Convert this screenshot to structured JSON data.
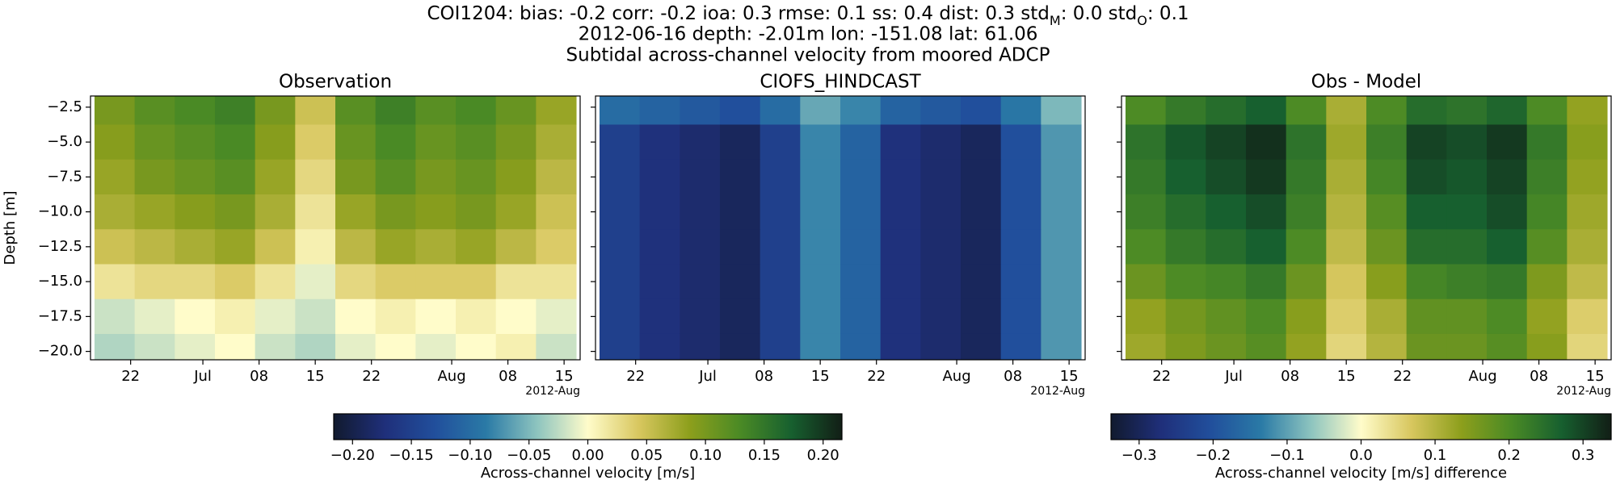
{
  "figure": {
    "title_parts": [
      {
        "text": "COI1204: bias: -0.2  corr: -0.2  ioa: 0.3  rmse: 0.1  ss: 0.4  dist: 0.3  std"
      },
      {
        "sub": "M"
      },
      {
        "text": ": 0.0  std"
      },
      {
        "sub": "O"
      },
      {
        "text": ": 0.1"
      }
    ],
    "subtitle": "2012-06-16 depth: -2.01m lon: -151.08 lat: 61.06",
    "subtitle2": "Subtidal across-channel velocity from moored ADCP",
    "colormap": [
      "#111a2e",
      "#1f2f7a",
      "#214f9c",
      "#2a7aa6",
      "#8dc4bf",
      "#fffcca",
      "#d8c75f",
      "#8d9f1c",
      "#4a8a25",
      "#17602f",
      "#121e16"
    ]
  },
  "chart_data": [
    {
      "type": "heatmap",
      "title": "Observation",
      "ylabel": "Depth [m]",
      "x_offset_label": "2012-Aug",
      "x": [
        "2012-06-20",
        "2012-06-25",
        "2012-06-30",
        "2012-07-05",
        "2012-07-10",
        "2012-07-15",
        "2012-07-20",
        "2012-07-25",
        "2012-07-30",
        "2012-08-04",
        "2012-08-09",
        "2012-08-14"
      ],
      "y": [
        -2.5,
        -5,
        -7.5,
        -10,
        -12.5,
        -15,
        -17.5,
        -20
      ],
      "z": [
        [
          0.1,
          0.12,
          0.13,
          0.14,
          0.1,
          0.05,
          0.12,
          0.14,
          0.12,
          0.13,
          0.11,
          0.08
        ],
        [
          0.09,
          0.11,
          0.12,
          0.13,
          0.09,
          0.04,
          0.11,
          0.13,
          0.11,
          0.12,
          0.1,
          0.07
        ],
        [
          0.08,
          0.1,
          0.11,
          0.12,
          0.08,
          0.03,
          0.1,
          0.12,
          0.1,
          0.11,
          0.09,
          0.06
        ],
        [
          0.07,
          0.08,
          0.09,
          0.1,
          0.07,
          0.02,
          0.08,
          0.1,
          0.09,
          0.1,
          0.08,
          0.05
        ],
        [
          0.05,
          0.06,
          0.07,
          0.08,
          0.05,
          0.01,
          0.06,
          0.08,
          0.07,
          0.08,
          0.06,
          0.04
        ],
        [
          0.02,
          0.03,
          0.03,
          0.04,
          0.02,
          -0.01,
          0.03,
          0.04,
          0.04,
          0.04,
          0.02,
          0.02
        ],
        [
          -0.02,
          -0.01,
          0.0,
          0.01,
          -0.01,
          -0.02,
          0.0,
          0.01,
          0.0,
          0.01,
          0.0,
          -0.01
        ],
        [
          -0.03,
          -0.02,
          -0.01,
          0.0,
          -0.02,
          -0.03,
          -0.01,
          0.0,
          -0.01,
          0.0,
          0.01,
          -0.02
        ]
      ],
      "clim": [
        -0.216,
        0.216
      ],
      "xlim": [
        "2012-06-17",
        "2012-08-17"
      ],
      "ylim": [
        -20.6,
        -1.7
      ],
      "xticks": [
        {
          "value": "2012-06-22",
          "label": "22"
        },
        {
          "value": "2012-07-01",
          "label": "Jul"
        },
        {
          "value": "2012-07-08",
          "label": "08"
        },
        {
          "value": "2012-07-15",
          "label": "15"
        },
        {
          "value": "2012-07-22",
          "label": "22"
        },
        {
          "value": "2012-08-01",
          "label": "Aug"
        },
        {
          "value": "2012-08-08",
          "label": "08"
        },
        {
          "value": "2012-08-15",
          "label": "15"
        }
      ],
      "yticks": [
        {
          "value": -2.5,
          "label": "−2.5"
        },
        {
          "value": -5,
          "label": "−5.0"
        },
        {
          "value": -7.5,
          "label": "−7.5"
        },
        {
          "value": -10,
          "label": "−10.0"
        },
        {
          "value": -12.5,
          "label": "−12.5"
        },
        {
          "value": -15,
          "label": "−15.0"
        },
        {
          "value": -17.5,
          "label": "−17.5"
        },
        {
          "value": -20,
          "label": "−20.0"
        }
      ],
      "show_ytick_labels": true
    },
    {
      "type": "heatmap",
      "title": "CIOFS_HINDCAST",
      "x_offset_label": "2012-Aug",
      "x": [
        "2012-06-20",
        "2012-06-25",
        "2012-06-30",
        "2012-07-05",
        "2012-07-10",
        "2012-07-15",
        "2012-07-20",
        "2012-07-25",
        "2012-07-30",
        "2012-08-04",
        "2012-08-09",
        "2012-08-14"
      ],
      "y": [
        -2.5,
        -5,
        -7.5,
        -10,
        -12.5,
        -15,
        -17.5,
        -20
      ],
      "z": [
        [
          -0.1,
          -0.11,
          -0.12,
          -0.13,
          -0.1,
          -0.06,
          -0.08,
          -0.11,
          -0.12,
          -0.13,
          -0.09,
          -0.05
        ],
        [
          -0.15,
          -0.17,
          -0.18,
          -0.19,
          -0.15,
          -0.08,
          -0.11,
          -0.17,
          -0.18,
          -0.19,
          -0.13,
          -0.07
        ],
        [
          -0.15,
          -0.17,
          -0.18,
          -0.19,
          -0.15,
          -0.08,
          -0.11,
          -0.17,
          -0.18,
          -0.19,
          -0.13,
          -0.07
        ],
        [
          -0.15,
          -0.17,
          -0.18,
          -0.19,
          -0.15,
          -0.08,
          -0.11,
          -0.17,
          -0.18,
          -0.19,
          -0.13,
          -0.07
        ],
        [
          -0.15,
          -0.17,
          -0.18,
          -0.19,
          -0.15,
          -0.08,
          -0.11,
          -0.17,
          -0.18,
          -0.19,
          -0.13,
          -0.07
        ],
        [
          -0.15,
          -0.17,
          -0.18,
          -0.19,
          -0.15,
          -0.08,
          -0.11,
          -0.17,
          -0.18,
          -0.19,
          -0.13,
          -0.07
        ],
        [
          -0.15,
          -0.17,
          -0.18,
          -0.19,
          -0.15,
          -0.08,
          -0.11,
          -0.17,
          -0.18,
          -0.19,
          -0.13,
          -0.07
        ],
        [
          -0.15,
          -0.17,
          -0.18,
          -0.19,
          -0.15,
          -0.08,
          -0.11,
          -0.17,
          -0.18,
          -0.19,
          -0.13,
          -0.07
        ]
      ],
      "clim": [
        -0.216,
        0.216
      ],
      "xlim": [
        "2012-06-17",
        "2012-08-17"
      ],
      "ylim": [
        -20.6,
        -1.7
      ],
      "xticks": [
        {
          "value": "2012-06-22",
          "label": "22"
        },
        {
          "value": "2012-07-01",
          "label": "Jul"
        },
        {
          "value": "2012-07-08",
          "label": "08"
        },
        {
          "value": "2012-07-15",
          "label": "15"
        },
        {
          "value": "2012-07-22",
          "label": "22"
        },
        {
          "value": "2012-08-01",
          "label": "Aug"
        },
        {
          "value": "2012-08-08",
          "label": "08"
        },
        {
          "value": "2012-08-15",
          "label": "15"
        }
      ],
      "yticks": [
        -2.5,
        -5,
        -7.5,
        -10,
        -12.5,
        -15,
        -17.5,
        -20
      ],
      "show_ytick_labels": false
    },
    {
      "type": "heatmap",
      "title": "Obs - Model",
      "x_offset_label": "2012-Aug",
      "x": [
        "2012-06-20",
        "2012-06-25",
        "2012-06-30",
        "2012-07-05",
        "2012-07-10",
        "2012-07-15",
        "2012-07-20",
        "2012-07-25",
        "2012-07-30",
        "2012-08-04",
        "2012-08-09",
        "2012-08-14"
      ],
      "y": [
        -2.5,
        -5,
        -7.5,
        -10,
        -12.5,
        -15,
        -17.5,
        -20
      ],
      "z": [
        [
          0.2,
          0.23,
          0.25,
          0.27,
          0.2,
          0.11,
          0.2,
          0.25,
          0.24,
          0.26,
          0.2,
          0.13
        ],
        [
          0.24,
          0.28,
          0.3,
          0.32,
          0.24,
          0.12,
          0.22,
          0.3,
          0.29,
          0.31,
          0.23,
          0.14
        ],
        [
          0.23,
          0.27,
          0.29,
          0.31,
          0.23,
          0.11,
          0.21,
          0.29,
          0.28,
          0.3,
          0.22,
          0.13
        ],
        [
          0.22,
          0.25,
          0.27,
          0.29,
          0.22,
          0.1,
          0.19,
          0.27,
          0.27,
          0.29,
          0.21,
          0.12
        ],
        [
          0.2,
          0.23,
          0.25,
          0.27,
          0.2,
          0.09,
          0.17,
          0.25,
          0.25,
          0.27,
          0.19,
          0.11
        ],
        [
          0.17,
          0.2,
          0.21,
          0.23,
          0.17,
          0.07,
          0.14,
          0.21,
          0.22,
          0.23,
          0.15,
          0.09
        ],
        [
          0.13,
          0.16,
          0.18,
          0.2,
          0.14,
          0.06,
          0.11,
          0.18,
          0.18,
          0.2,
          0.13,
          0.06
        ],
        [
          0.12,
          0.15,
          0.17,
          0.19,
          0.13,
          0.05,
          0.1,
          0.17,
          0.17,
          0.19,
          0.14,
          0.05
        ]
      ],
      "clim": [
        -0.338,
        0.338
      ],
      "xlim": [
        "2012-06-17",
        "2012-08-17"
      ],
      "ylim": [
        -20.6,
        -1.7
      ],
      "xticks": [
        {
          "value": "2012-06-22",
          "label": "22"
        },
        {
          "value": "2012-07-01",
          "label": "Jul"
        },
        {
          "value": "2012-07-08",
          "label": "08"
        },
        {
          "value": "2012-07-15",
          "label": "15"
        },
        {
          "value": "2012-07-22",
          "label": "22"
        },
        {
          "value": "2012-08-01",
          "label": "Aug"
        },
        {
          "value": "2012-08-08",
          "label": "08"
        },
        {
          "value": "2012-08-15",
          "label": "15"
        }
      ],
      "yticks": [
        -2.5,
        -5,
        -7.5,
        -10,
        -12.5,
        -15,
        -17.5,
        -20
      ],
      "show_ytick_labels": false
    },
    {
      "type": "colorbar",
      "label": "Across-channel velocity [m/s]",
      "clim": [
        -0.216,
        0.216
      ],
      "ticks": [
        {
          "value": -0.2,
          "label": "−0.20"
        },
        {
          "value": -0.15,
          "label": "−0.15"
        },
        {
          "value": -0.1,
          "label": "−0.10"
        },
        {
          "value": -0.05,
          "label": "−0.05"
        },
        {
          "value": 0,
          "label": "0.00"
        },
        {
          "value": 0.05,
          "label": "0.05"
        },
        {
          "value": 0.1,
          "label": "0.10"
        },
        {
          "value": 0.15,
          "label": "0.15"
        },
        {
          "value": 0.2,
          "label": "0.20"
        }
      ]
    },
    {
      "type": "colorbar",
      "label": "Across-channel velocity [m/s] difference",
      "clim": [
        -0.338,
        0.338
      ],
      "ticks": [
        {
          "value": -0.3,
          "label": "−0.3"
        },
        {
          "value": -0.2,
          "label": "−0.2"
        },
        {
          "value": -0.1,
          "label": "−0.1"
        },
        {
          "value": 0,
          "label": "0.0"
        },
        {
          "value": 0.1,
          "label": "0.1"
        },
        {
          "value": 0.2,
          "label": "0.2"
        },
        {
          "value": 0.3,
          "label": "0.3"
        }
      ]
    }
  ]
}
